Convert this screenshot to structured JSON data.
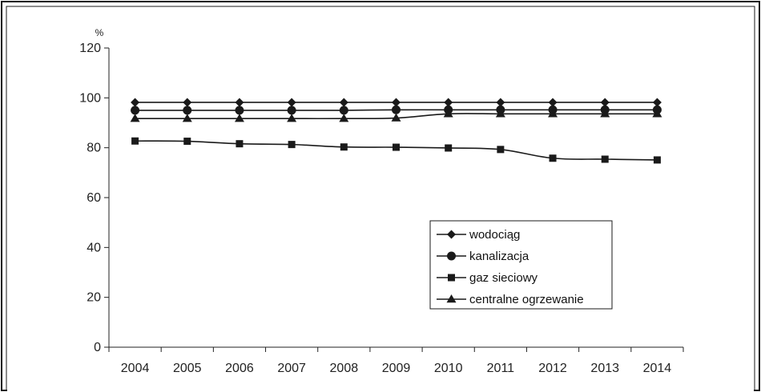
{
  "chart_data": {
    "type": "line",
    "title": "",
    "xlabel": "",
    "ylabel": "%",
    "x": [
      "2004",
      "2005",
      "2006",
      "2007",
      "2008",
      "2009",
      "2010",
      "2011",
      "2012",
      "2013",
      "2014"
    ],
    "ylim": [
      0,
      120
    ],
    "yticks": [
      "0",
      "20",
      "40",
      "60",
      "80",
      "100",
      "120"
    ],
    "grid": false,
    "legend_position": "center-right",
    "series": [
      {
        "name": "wodociąg",
        "marker": "diamond",
        "values": [
          98.2,
          98.2,
          98.2,
          98.2,
          98.2,
          98.2,
          98.2,
          98.2,
          98.2,
          98.2,
          98.2
        ]
      },
      {
        "name": "kanalizacja",
        "marker": "circle",
        "values": [
          95.0,
          95.0,
          95.0,
          95.0,
          95.0,
          95.2,
          95.2,
          95.2,
          95.2,
          95.2,
          95.2
        ]
      },
      {
        "name": "gaz sieciowy",
        "marker": "square",
        "values": [
          82.7,
          82.6,
          81.6,
          81.3,
          80.3,
          80.2,
          79.9,
          79.3,
          75.8,
          75.4,
          75.1
        ]
      },
      {
        "name": "centralne ogrzewanie",
        "marker": "triangle",
        "values": [
          91.7,
          91.7,
          91.7,
          91.7,
          91.7,
          91.9,
          93.6,
          93.6,
          93.6,
          93.6,
          93.6
        ]
      }
    ],
    "colors": {
      "line": "#1a1a1a",
      "frame": "#1a1a1a",
      "axis": "#222222"
    }
  }
}
